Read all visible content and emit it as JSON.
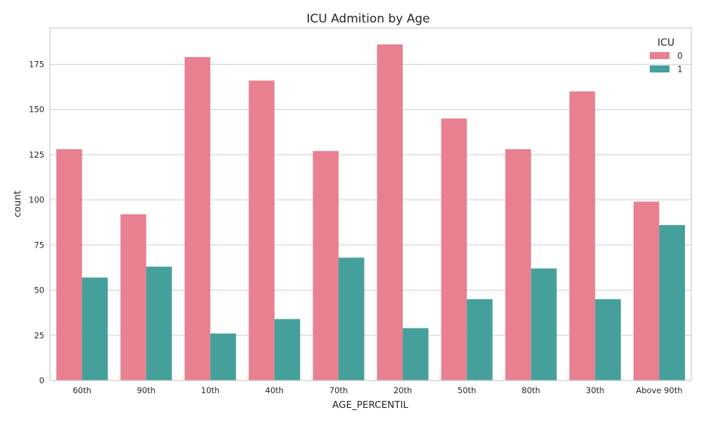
{
  "chart_data": {
    "type": "bar",
    "title": "ICU Admition by Age",
    "xlabel": "AGE_PERCENTIL",
    "ylabel": "count",
    "categories": [
      "60th",
      "90th",
      "10th",
      "40th",
      "70th",
      "20th",
      "50th",
      "80th",
      "30th",
      "Above 90th"
    ],
    "series": [
      {
        "name": "0",
        "color": "#e8808f",
        "values": [
          128,
          92,
          179,
          166,
          127,
          186,
          145,
          128,
          160,
          99
        ]
      },
      {
        "name": "1",
        "color": "#45a09b",
        "values": [
          57,
          63,
          26,
          34,
          68,
          29,
          45,
          62,
          45,
          86
        ]
      }
    ],
    "ylim": [
      0,
      195
    ],
    "yticks": [
      0,
      25,
      50,
      75,
      100,
      125,
      150,
      175
    ],
    "grid": true,
    "legend": {
      "title": "ICU",
      "position": "top-right"
    }
  }
}
